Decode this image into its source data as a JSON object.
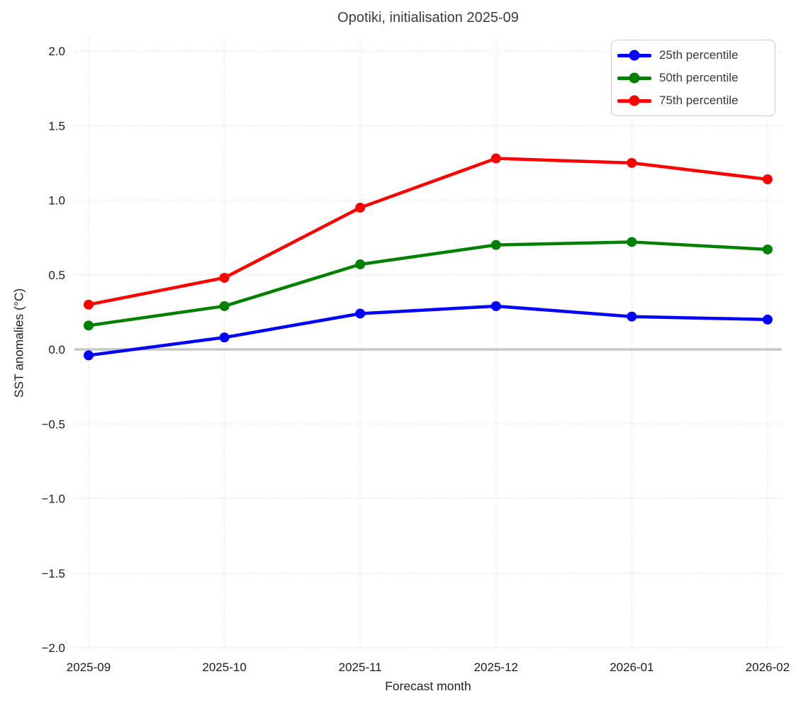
{
  "chart_data": {
    "type": "line",
    "title": "Opotiki, initialisation 2025-09",
    "xlabel": "Forecast month",
    "ylabel": "SST anomalies (°C)",
    "categories": [
      "2025-09",
      "2025-10",
      "2025-11",
      "2025-12",
      "2026-01",
      "2026-02"
    ],
    "series": [
      {
        "name": "25th percentile",
        "color": "#0000ff",
        "values": [
          -0.04,
          0.08,
          0.24,
          0.29,
          0.22,
          0.2
        ]
      },
      {
        "name": "50th percentile",
        "color": "#008000",
        "values": [
          0.16,
          0.29,
          0.57,
          0.7,
          0.72,
          0.67
        ]
      },
      {
        "name": "75th percentile",
        "color": "#ff0000",
        "values": [
          0.3,
          0.48,
          0.95,
          1.28,
          1.25,
          1.14
        ]
      }
    ],
    "ylim": [
      -2.0,
      2.0
    ],
    "yticks": [
      2.0,
      1.5,
      1.0,
      0.5,
      0.0,
      -0.5,
      -1.0,
      -1.5,
      -2.0
    ],
    "ytick_labels": [
      "2.0",
      "1.5",
      "1.0",
      "0.5",
      "0.0",
      "−0.5",
      "−1.0",
      "−1.5",
      "−2.0"
    ],
    "grid": true,
    "legend_position": "upper right",
    "zero_line": true,
    "marker": "circle",
    "colors": {
      "background": "#ffffff",
      "grid": "#dcdcdc",
      "zero_line": "#c6c6c6",
      "title_text": "#3c3c3c",
      "tick_text": "#1c1c1c",
      "legend_border": "#cccccc"
    }
  }
}
